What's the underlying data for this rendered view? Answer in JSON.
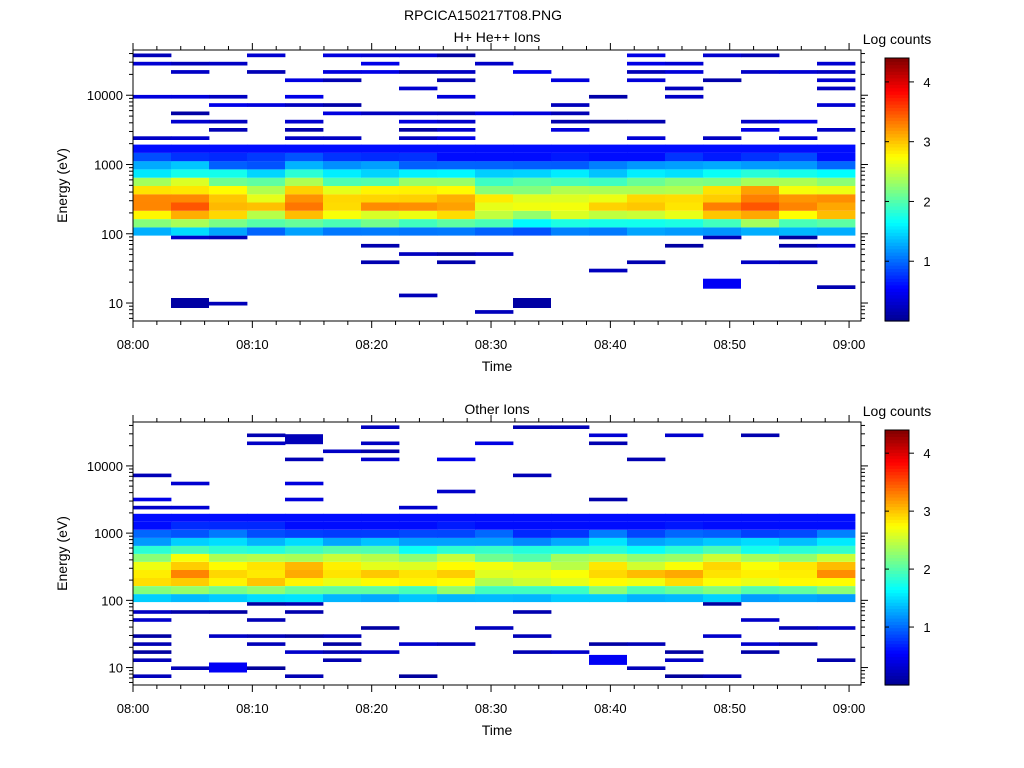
{
  "figure_title": "RPCICA150217T08.PNG",
  "colors": {
    "colormap": [
      "#00008f",
      "#0000ff",
      "#0080ff",
      "#00ffff",
      "#80ff80",
      "#ffff00",
      "#ff8000",
      "#ff0000",
      "#800000"
    ]
  },
  "chart_data": [
    {
      "type": "heatmap",
      "title": "H+ He++ Ions",
      "xlabel": "Time",
      "ylabel": "Energy (eV)",
      "yscale": "log",
      "ylim": [
        5.5,
        45000
      ],
      "x_ticks": [
        "08:00",
        "08:10",
        "08:20",
        "08:30",
        "08:40",
        "08:50",
        "09:00"
      ],
      "y_ticks": [
        "10",
        "100",
        "1000",
        "10000"
      ],
      "colorbar": {
        "label": "Log counts",
        "ticks": [
          "1",
          "2",
          "3",
          "4"
        ],
        "range": [
          0,
          4.4
        ]
      },
      "time_bins_min": 19,
      "dense_band_ev": [
        85,
        1700
      ],
      "peak_ev": 250,
      "column_peak_values": [
        3.3,
        3.5,
        3.2,
        2.9,
        3.3,
        3.0,
        3.1,
        3.1,
        3.2,
        2.8,
        2.7,
        2.8,
        2.9,
        2.9,
        3.0,
        3.2,
        3.6,
        3.2,
        3.3
      ],
      "isolated_pixels": [
        {
          "time": "08:05",
          "energy_ev": 10,
          "value": 0.1
        },
        {
          "time": "08:33",
          "energy_ev": 10,
          "value": 0.1
        },
        {
          "time": "08:50",
          "energy_ev": 19,
          "value": 0.5
        }
      ]
    },
    {
      "type": "heatmap",
      "title": "Other Ions",
      "xlabel": "Time",
      "ylabel": "Energy (eV)",
      "yscale": "log",
      "ylim": [
        5.5,
        45000
      ],
      "x_ticks": [
        "08:00",
        "08:10",
        "08:20",
        "08:30",
        "08:40",
        "08:50",
        "09:00"
      ],
      "y_ticks": [
        "10",
        "100",
        "1000",
        "10000"
      ],
      "colorbar": {
        "label": "Log counts",
        "ticks": [
          "1",
          "2",
          "3",
          "4"
        ],
        "range": [
          0,
          4.4
        ]
      },
      "time_bins_min": 19,
      "dense_band_ev": [
        85,
        1800
      ],
      "peak_ev": 230,
      "column_peak_values": [
        2.9,
        3.2,
        3.0,
        3.0,
        3.1,
        3.0,
        3.0,
        2.9,
        3.0,
        2.7,
        2.7,
        2.8,
        3.0,
        2.9,
        3.0,
        3.0,
        2.9,
        3.0,
        3.1
      ],
      "isolated_pixels": [
        {
          "time": "08:14",
          "energy_ev": 25000,
          "value": 0.2
        },
        {
          "time": "08:07",
          "energy_ev": 10,
          "value": 0.5
        },
        {
          "time": "08:40",
          "energy_ev": 13,
          "value": 0.5
        }
      ]
    }
  ]
}
